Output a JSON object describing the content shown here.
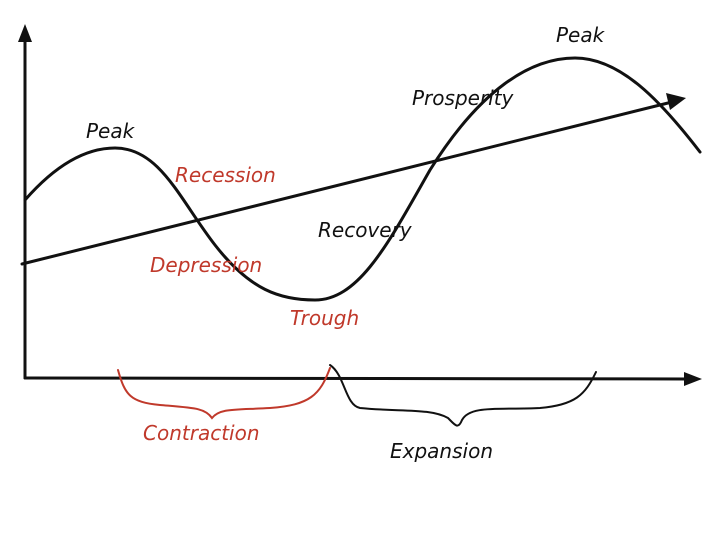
{
  "labels": [
    "Peak",
    "Recession",
    "Depression",
    "Trough",
    "Recovery",
    "Prosperity",
    "Peak",
    "Contraction",
    "Expansion"
  ]
}
